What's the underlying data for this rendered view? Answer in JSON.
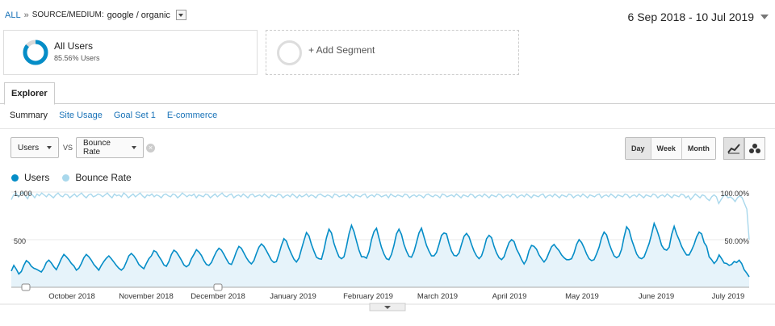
{
  "breadcrumb": {
    "root": "ALL",
    "separator": "»",
    "dimension": "SOURCE/MEDIUM:",
    "value": "google / organic"
  },
  "date_range": {
    "label": "6 Sep 2018 - 10 Jul 2019"
  },
  "segments": [
    {
      "title": "All Users",
      "subtitle": "85.56% Users",
      "percent": 85.56
    },
    {
      "label": "+ Add Segment"
    }
  ],
  "tabs": [
    {
      "label": "Explorer"
    }
  ],
  "subtabs": [
    {
      "label": "Summary",
      "active": true
    },
    {
      "label": "Site Usage"
    },
    {
      "label": "Goal Set 1"
    },
    {
      "label": "E-commerce"
    }
  ],
  "metric_selectors": {
    "primary": "Users",
    "vs_label": "VS",
    "secondary": "Bounce Rate"
  },
  "granularity": {
    "options": [
      "Day",
      "Week",
      "Month"
    ],
    "selected": "Day"
  },
  "view_icons": [
    "line-chart-icon",
    "motion-chart-icon"
  ],
  "colors": {
    "users": "#058dc7",
    "bounce_rate": "#a9d8ec",
    "users_fill": "#e6f3fa"
  },
  "chart_data": {
    "type": "line",
    "legend": [
      "Users",
      "Bounce Rate"
    ],
    "left_axis": {
      "ticks": [
        "1,000",
        "500"
      ],
      "min": 0,
      "max": 1000
    },
    "right_axis": {
      "ticks": [
        "100.00%",
        "50.00%"
      ],
      "min": 0,
      "max": 100
    },
    "x_labels": [
      "October 2018",
      "November 2018",
      "December 2018",
      "January 2019",
      "February 2019",
      "March 2019",
      "April 2019",
      "May 2019",
      "June 2019",
      "July 2019"
    ],
    "grid": true,
    "series": [
      {
        "name": "Users",
        "axis": "left",
        "values": [
          170,
          230,
          190,
          140,
          165,
          230,
          280,
          260,
          220,
          200,
          190,
          175,
          160,
          200,
          260,
          285,
          255,
          215,
          185,
          240,
          300,
          345,
          320,
          290,
          250,
          225,
          180,
          200,
          250,
          310,
          345,
          320,
          285,
          240,
          210,
          180,
          230,
          270,
          305,
          330,
          300,
          265,
          230,
          200,
          180,
          205,
          265,
          330,
          355,
          330,
          290,
          240,
          215,
          195,
          250,
          300,
          330,
          385,
          370,
          325,
          285,
          235,
          220,
          270,
          345,
          390,
          370,
          330,
          285,
          235,
          215,
          235,
          300,
          345,
          395,
          370,
          335,
          280,
          240,
          230,
          260,
          320,
          375,
          410,
          390,
          345,
          295,
          250,
          240,
          300,
          375,
          430,
          410,
          360,
          310,
          270,
          245,
          280,
          355,
          420,
          455,
          430,
          385,
          335,
          285,
          260,
          270,
          350,
          440,
          510,
          485,
          410,
          350,
          295,
          265,
          305,
          400,
          490,
          575,
          540,
          450,
          380,
          315,
          300,
          295,
          395,
          520,
          610,
          570,
          460,
          385,
          320,
          300,
          320,
          430,
          560,
          650,
          585,
          485,
          390,
          320,
          320,
          305,
          375,
          500,
          585,
          620,
          515,
          420,
          350,
          300,
          290,
          345,
          440,
          560,
          610,
          555,
          450,
          380,
          325,
          315,
          375,
          470,
          570,
          620,
          530,
          440,
          380,
          330,
          330,
          365,
          450,
          545,
          570,
          560,
          460,
          380,
          335,
          330,
          360,
          450,
          535,
          565,
          530,
          450,
          380,
          330,
          300,
          330,
          410,
          510,
          545,
          520,
          430,
          360,
          310,
          290,
          320,
          400,
          470,
          500,
          480,
          400,
          350,
          290,
          245,
          290,
          385,
          440,
          430,
          400,
          340,
          300,
          265,
          300,
          365,
          425,
          450,
          415,
          385,
          340,
          310,
          290,
          290,
          300,
          360,
          450,
          500,
          470,
          415,
          350,
          300,
          280,
          290,
          350,
          420,
          520,
          580,
          550,
          460,
          390,
          330,
          310,
          330,
          400,
          530,
          635,
          600,
          500,
          425,
          350,
          310,
          300,
          320,
          390,
          460,
          560,
          670,
          610,
          530,
          440,
          400,
          390,
          420,
          555,
          640,
          560,
          500,
          430,
          380,
          340,
          340,
          390,
          450,
          530,
          580,
          560,
          470,
          430,
          320,
          290,
          250,
          280,
          340,
          300,
          255,
          250,
          230,
          240,
          270,
          260,
          285,
          250,
          185,
          150,
          110
        ]
      },
      {
        "name": "Bounce Rate",
        "axis": "right",
        "values": [
          92,
          97,
          99,
          95,
          98,
          100,
          96,
          93,
          99,
          97,
          94,
          98,
          96,
          99,
          97,
          95,
          98,
          96,
          94,
          97,
          99,
          96,
          95,
          98,
          97,
          94,
          96,
          98,
          95,
          97,
          99,
          96,
          94,
          97,
          98,
          95,
          96,
          98,
          97,
          95,
          97,
          99,
          96,
          94,
          98,
          96,
          97,
          95,
          99,
          97,
          94,
          96,
          98,
          95,
          97,
          99,
          96,
          94,
          97,
          96,
          98,
          95,
          97,
          96,
          94,
          97,
          98,
          96,
          95,
          98,
          97,
          94,
          96,
          99,
          97,
          95,
          97,
          96,
          98,
          94,
          97,
          96,
          95,
          98,
          97,
          94,
          96,
          98,
          95,
          97,
          99,
          96,
          95,
          97,
          98,
          94,
          96,
          97,
          95,
          98,
          96,
          94,
          97,
          98,
          95,
          96,
          97,
          95,
          98,
          96,
          94,
          97,
          96,
          95,
          98,
          97,
          94,
          96,
          97,
          95,
          98,
          96,
          94,
          97,
          95,
          96,
          98,
          95,
          97,
          96,
          94,
          97,
          98,
          96,
          95,
          97,
          96,
          94,
          98,
          97,
          95,
          96,
          97,
          95,
          98,
          96,
          94,
          97,
          96,
          95,
          97,
          98,
          94,
          96,
          97,
          95,
          98,
          97,
          95,
          96,
          97,
          94,
          98,
          96,
          95,
          97,
          96,
          95,
          98,
          97,
          94,
          96,
          97,
          95,
          97,
          96,
          94,
          97,
          98,
          96,
          95,
          97,
          96,
          94,
          98,
          97,
          95,
          96,
          97,
          95,
          98,
          96,
          94,
          97,
          96,
          95,
          98,
          97,
          94,
          96,
          97,
          95,
          98,
          96,
          94,
          97,
          96,
          95,
          98,
          97,
          94,
          96,
          97,
          95,
          98,
          97,
          94,
          96,
          97,
          95,
          98,
          96,
          94,
          97,
          96,
          95,
          97,
          98,
          94,
          96,
          97,
          95,
          98,
          96,
          94,
          97,
          96,
          95,
          98,
          97,
          94,
          96,
          97,
          95,
          98,
          96,
          94,
          97,
          96,
          95,
          97,
          98,
          94,
          96,
          97,
          95,
          98,
          96,
          94,
          97,
          96,
          95,
          98,
          97,
          94,
          96,
          97,
          95,
          98,
          96,
          94,
          97,
          96,
          95,
          98,
          97,
          94,
          96,
          97,
          95,
          98,
          96,
          94,
          97,
          96,
          95,
          98,
          97,
          94,
          96,
          92,
          95,
          98,
          96,
          94,
          97,
          96,
          93,
          91,
          95,
          97,
          95,
          88,
          92,
          96,
          97,
          94,
          95,
          93,
          90,
          94,
          96,
          94,
          88,
          82,
          50
        ]
      }
    ]
  }
}
